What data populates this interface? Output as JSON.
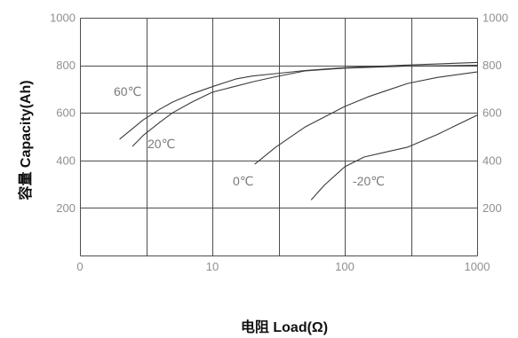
{
  "chart_data": {
    "type": "line",
    "xlabel": "电阻 Load(Ω)",
    "ylabel": "容量 Capacity(Ah)",
    "x_scale": "log",
    "xlim": [
      1,
      1000
    ],
    "ylim": [
      0,
      1000
    ],
    "x_ticks": [
      {
        "value": 1,
        "label": "0"
      },
      {
        "value": 10,
        "label": "10"
      },
      {
        "value": 100,
        "label": "100"
      },
      {
        "value": 1000,
        "label": "1000"
      }
    ],
    "y_ticks": [
      200,
      400,
      600,
      800,
      1000
    ],
    "grid": true,
    "series": [
      {
        "name": "60℃",
        "points": [
          [
            2,
            490
          ],
          [
            3,
            570
          ],
          [
            4,
            615
          ],
          [
            5,
            645
          ],
          [
            7,
            680
          ],
          [
            10,
            710
          ],
          [
            15,
            742
          ],
          [
            20,
            755
          ],
          [
            30,
            765
          ],
          [
            50,
            778
          ],
          [
            100,
            790
          ],
          [
            300,
            801
          ],
          [
            1000,
            812
          ]
        ]
      },
      {
        "name": "20℃",
        "points": [
          [
            2.5,
            460
          ],
          [
            3,
            505
          ],
          [
            4,
            560
          ],
          [
            5,
            600
          ],
          [
            7,
            645
          ],
          [
            10,
            687
          ],
          [
            15,
            712
          ],
          [
            20,
            730
          ],
          [
            30,
            752
          ],
          [
            50,
            776
          ],
          [
            100,
            788
          ],
          [
            300,
            797
          ],
          [
            1000,
            800
          ]
        ]
      },
      {
        "name": "0℃",
        "points": [
          [
            21,
            385
          ],
          [
            30,
            455
          ],
          [
            50,
            540
          ],
          [
            70,
            582
          ],
          [
            100,
            627
          ],
          [
            150,
            667
          ],
          [
            200,
            691
          ],
          [
            300,
            724
          ],
          [
            500,
            749
          ],
          [
            1000,
            772
          ]
        ]
      },
      {
        "name": "-20℃",
        "points": [
          [
            56,
            235
          ],
          [
            70,
            295
          ],
          [
            100,
            373
          ],
          [
            140,
            414
          ],
          [
            200,
            434
          ],
          [
            300,
            456
          ],
          [
            500,
            509
          ],
          [
            1000,
            590
          ]
        ]
      }
    ]
  }
}
